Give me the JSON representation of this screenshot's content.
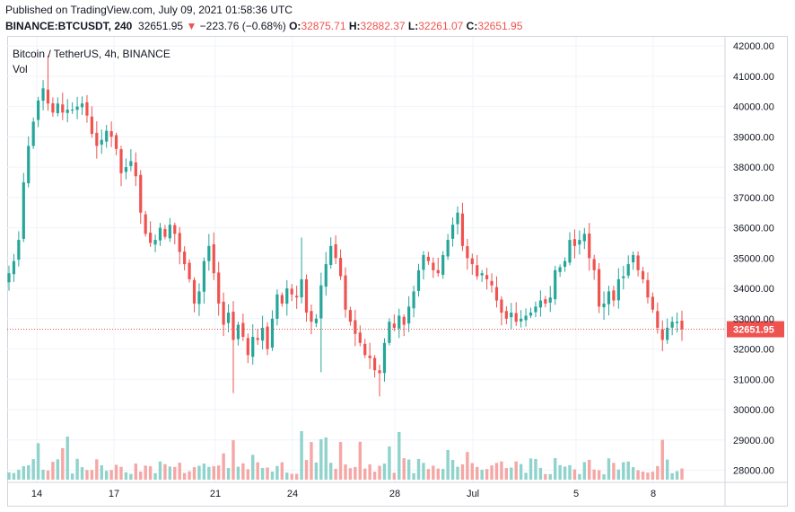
{
  "header": {
    "published": "Published on TradingView.com, July 09, 2021 01:58:36 UTC",
    "symbol": "BINANCE:BTCUSDT, 240",
    "last": "32651.95",
    "change_arrow": "▼",
    "change": "−223.76 (−0.68%)",
    "o_label": "O:",
    "o_value": "32875.71",
    "h_label": "H:",
    "h_value": "32882.37",
    "l_label": "L:",
    "l_value": "32261.07",
    "c_label": "C:",
    "c_value": "32651.95"
  },
  "legend": {
    "title": "Bitcoin / TetherUS, 4h, BINANCE",
    "volume": "Vol"
  },
  "colors": {
    "up": "#26a69a",
    "down": "#ef5350",
    "up_vol": "#8fd3cc",
    "down_vol": "#f4a7a5",
    "grid": "#f0f3fa"
  },
  "chart_data": {
    "type": "candlestick",
    "title": "Bitcoin / TetherUS, 4h, BINANCE",
    "x_ticks": [
      "14",
      "17",
      "21",
      "24",
      "28",
      "Jul",
      "5",
      "8"
    ],
    "y_ticks": [
      "42000.00",
      "41000.00",
      "40000.00",
      "39000.00",
      "38000.00",
      "37000.00",
      "36000.00",
      "35000.00",
      "34000.00",
      "33000.00",
      "32000.00",
      "31000.00",
      "30000.00",
      "29000.00",
      "28000.00"
    ],
    "ylim": [
      27600,
      42300
    ],
    "last_price": 32651.95,
    "last_price_label": "32651.95",
    "grid": true,
    "volume_pane": true,
    "close": [
      34500,
      34900,
      35600,
      37500,
      38700,
      39500,
      40200,
      40600,
      40100,
      39800,
      40100,
      39800,
      39900,
      39900,
      40000,
      40100,
      39700,
      39100,
      38700,
      38900,
      39200,
      39000,
      38600,
      37800,
      38000,
      38200,
      37700,
      36500,
      35800,
      35500,
      35600,
      36000,
      35700,
      36100,
      35800,
      35200,
      34800,
      34300,
      33500,
      33900,
      34900,
      35400,
      34500,
      33500,
      32800,
      33200,
      32300,
      32800,
      32400,
      31800,
      32400,
      32300,
      32700,
      32000,
      33000,
      33800,
      33500,
      34000,
      33800,
      33700,
      34300,
      33200,
      32900,
      33000,
      34100,
      34800,
      35400,
      35000,
      34400,
      33300,
      32900,
      32500,
      32200,
      31800,
      31700,
      31300,
      31200,
      32200,
      32900,
      32700,
      33100,
      32800,
      33400,
      33900,
      34600,
      35100,
      34900,
      34600,
      34500,
      35100,
      35600,
      36100,
      36500,
      35400,
      35000,
      34800,
      34400,
      34500,
      34300,
      34100,
      33600,
      33200,
      33000,
      33200,
      32900,
      33000,
      33100,
      33200,
      33400,
      33600,
      33500,
      33700,
      34600,
      34700,
      34900,
      35600,
      35400,
      35600,
      35800,
      35000,
      34600,
      33400,
      33500,
      33900,
      33600,
      34300,
      34400,
      34800,
      35100,
      34600,
      34300,
      33700,
      33300,
      32700,
      32300,
      32700,
      32900,
      32900,
      32651.95
    ],
    "volume_scale_note": "relative"
  }
}
